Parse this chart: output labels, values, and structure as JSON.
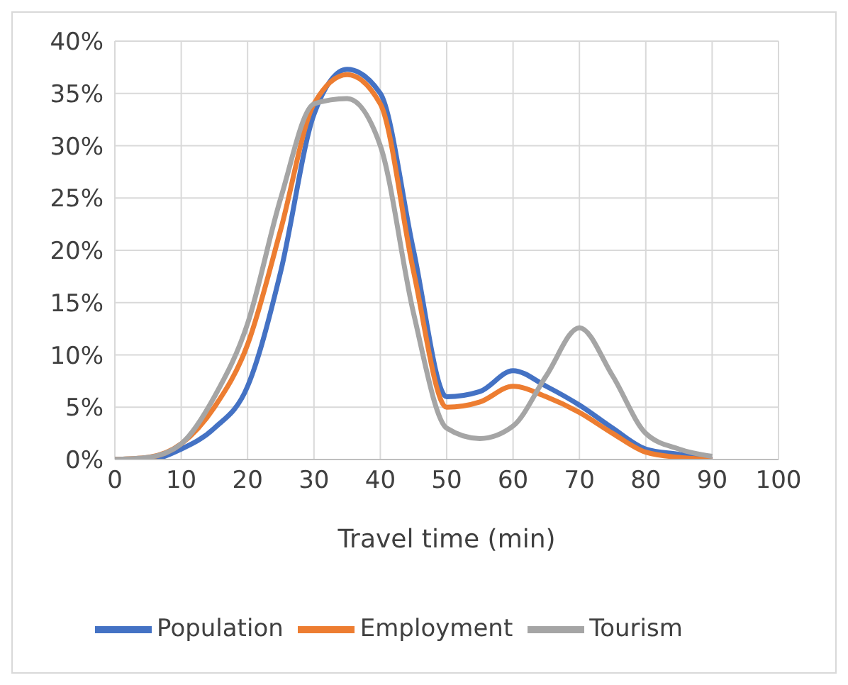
{
  "chart_data": {
    "type": "line",
    "xlabel": "Travel time (min)",
    "x": [
      0,
      5,
      10,
      15,
      20,
      25,
      30,
      35,
      40,
      45,
      50,
      55,
      60,
      65,
      70,
      75,
      80,
      85,
      90
    ],
    "series": [
      {
        "name": "Population",
        "color": "#4472c4",
        "values": [
          0,
          0,
          1,
          3,
          7,
          18,
          33,
          37.3,
          35,
          20,
          6,
          6.5,
          8.5,
          7,
          5.2,
          3,
          1,
          0.5,
          0
        ]
      },
      {
        "name": "Employment",
        "color": "#ed7d31",
        "values": [
          0,
          0.2,
          1.5,
          5,
          11,
          22,
          34,
          36.8,
          34,
          18,
          5,
          5.5,
          7,
          6,
          4.5,
          2.5,
          0.7,
          0.2,
          0
        ]
      },
      {
        "name": "Tourism",
        "color": "#a5a5a5",
        "values": [
          0,
          0.2,
          1.5,
          6,
          13,
          25,
          34,
          34.5,
          30,
          14,
          3,
          2,
          3.2,
          8,
          12.6,
          8,
          2.5,
          1,
          0.3
        ]
      }
    ],
    "xlim": [
      0,
      100
    ],
    "xticks": [
      0,
      10,
      20,
      30,
      40,
      50,
      60,
      70,
      80,
      90,
      100
    ],
    "ylim": [
      0,
      40
    ],
    "yticks": [
      {
        "value": 0,
        "label": "0%"
      },
      {
        "value": 5,
        "label": "5%"
      },
      {
        "value": 10,
        "label": "10%"
      },
      {
        "value": 15,
        "label": "15%"
      },
      {
        "value": 20,
        "label": "20%"
      },
      {
        "value": 25,
        "label": "25%"
      },
      {
        "value": 30,
        "label": "30%"
      },
      {
        "value": 35,
        "label": "35%"
      },
      {
        "value": 40,
        "label": "40%"
      }
    ],
    "grid": true,
    "legend": "bottom",
    "marker": "none",
    "line_style": "solid"
  }
}
